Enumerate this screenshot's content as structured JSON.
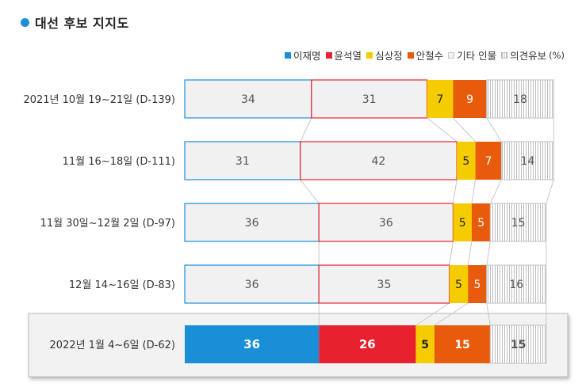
{
  "title": "대선 후보 지지도",
  "colors": {
    "title_dot": "#1a8fd8",
    "lee": "#1a8fd8",
    "yoon": "#e8212e",
    "sim": "#f5cc00",
    "ahn": "#e85a0c",
    "other": "#f0f0f0",
    "undecided_hatch": "#bdbdbd"
  },
  "legend": {
    "items": [
      {
        "label": "이재명",
        "color": "#1a8fd8",
        "style": "solid"
      },
      {
        "label": "윤석열",
        "color": "#e8212e",
        "style": "solid"
      },
      {
        "label": "심상정",
        "color": "#f5cc00",
        "style": "solid"
      },
      {
        "label": "안철수",
        "color": "#e85a0c",
        "style": "solid"
      },
      {
        "label": "기타 인물",
        "color": "#f0f0f0",
        "style": "gray"
      },
      {
        "label": "의견유보",
        "color": "#bdbdbd",
        "style": "hatch"
      }
    ],
    "unit": "(%)"
  },
  "chart_data": {
    "type": "bar",
    "orientation": "horizontal",
    "stacked": true,
    "title": "대선 후보 지지도",
    "unit": "%",
    "categories": [
      "2021년 10월 19~21일 (D-139)",
      "11월 16~18일 (D-111)",
      "11월 30일~12월 2일 (D-97)",
      "12월 14~16일 (D-83)",
      "2022년 1월 4~6일 (D-62)"
    ],
    "series": [
      {
        "name": "이재명",
        "values": [
          34,
          31,
          36,
          36,
          36
        ]
      },
      {
        "name": "윤석열",
        "values": [
          31,
          42,
          36,
          35,
          26
        ]
      },
      {
        "name": "심상정",
        "values": [
          7,
          5,
          5,
          5,
          5
        ]
      },
      {
        "name": "안철수",
        "values": [
          9,
          7,
          5,
          5,
          15
        ]
      },
      {
        "name": "기타 인물",
        "values": [
          null,
          null,
          null,
          null,
          null
        ]
      },
      {
        "name": "의견유보",
        "values": [
          18,
          14,
          15,
          16,
          15
        ]
      }
    ],
    "highlight_category": "2022년 1월 4~6일 (D-62)"
  }
}
